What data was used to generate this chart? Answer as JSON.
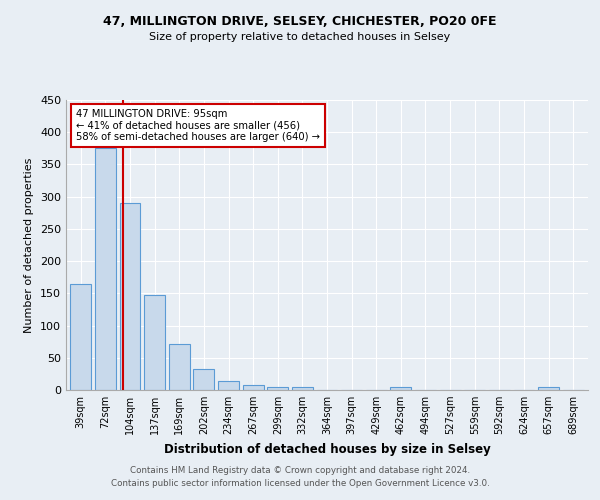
{
  "title": "47, MILLINGTON DRIVE, SELSEY, CHICHESTER, PO20 0FE",
  "subtitle": "Size of property relative to detached houses in Selsey",
  "xlabel": "Distribution of detached houses by size in Selsey",
  "ylabel": "Number of detached properties",
  "categories": [
    "39sqm",
    "72sqm",
    "104sqm",
    "137sqm",
    "169sqm",
    "202sqm",
    "234sqm",
    "267sqm",
    "299sqm",
    "332sqm",
    "364sqm",
    "397sqm",
    "429sqm",
    "462sqm",
    "494sqm",
    "527sqm",
    "559sqm",
    "592sqm",
    "624sqm",
    "657sqm",
    "689sqm"
  ],
  "values": [
    165,
    375,
    290,
    148,
    72,
    33,
    14,
    7,
    5,
    4,
    0,
    0,
    0,
    4,
    0,
    0,
    0,
    0,
    0,
    4,
    0
  ],
  "bar_color": "#c8d9eb",
  "bar_edge_color": "#5b9bd5",
  "annotation_title": "47 MILLINGTON DRIVE: 95sqm",
  "annotation_line1": "← 41% of detached houses are smaller (456)",
  "annotation_line2": "58% of semi-detached houses are larger (640) →",
  "annotation_box_color": "#ffffff",
  "annotation_box_edge": "#cc0000",
  "ylim": [
    0,
    450
  ],
  "yticks": [
    0,
    50,
    100,
    150,
    200,
    250,
    300,
    350,
    400,
    450
  ],
  "footer_line1": "Contains HM Land Registry data © Crown copyright and database right 2024.",
  "footer_line2": "Contains public sector information licensed under the Open Government Licence v3.0.",
  "background_color": "#e8eef4",
  "plot_background": "#e8eef4"
}
